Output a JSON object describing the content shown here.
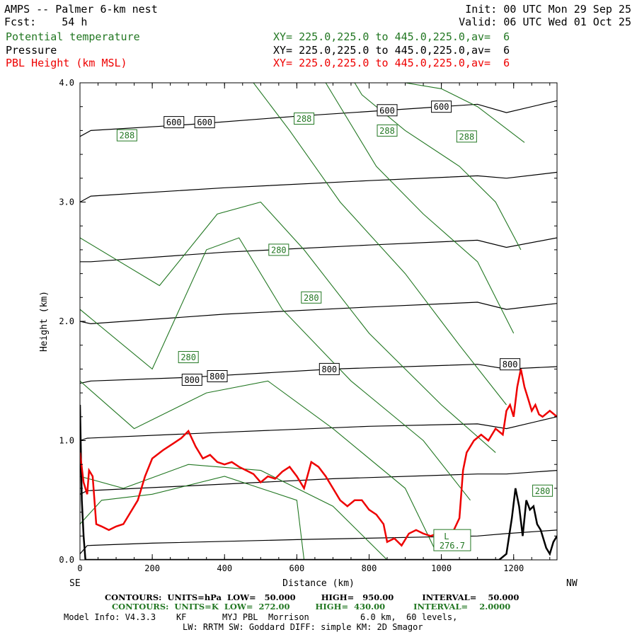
{
  "header": {
    "title": "AMPS -- Palmer 6-km nest",
    "fcst": "Fcst:    54 h",
    "init": "Init: 00 UTC Mon 29 Sep 25",
    "valid": "Valid: 06 UTC Wed 01 Oct 25",
    "fields": [
      {
        "name": "Potential temperature",
        "xy": "XY= 225.0,225.0 to 445.0,225.0,av=  6",
        "color": "#227722"
      },
      {
        "name": "Pressure",
        "xy": "XY= 225.0,225.0 to 445.0,225.0,av=  6",
        "color": "#000000"
      },
      {
        "name": "PBL Height (km MSL)",
        "xy": "XY= 225.0,225.0 to 445.0,225.0,av=  6",
        "color": "#ee0000"
      }
    ]
  },
  "chart_data": {
    "type": "line",
    "title": "AMPS -- Palmer 6-km nest",
    "xlabel": "Distance (km)",
    "ylabel": "Height (km)",
    "xlim": [
      0,
      1320
    ],
    "ylim": [
      0,
      4.0
    ],
    "x_ticks": [
      "0",
      "200",
      "400",
      "600",
      "800",
      "1000",
      "1200"
    ],
    "y_ticks": [
      "0.0",
      "1.0",
      "2.0",
      "3.0",
      "4.0"
    ],
    "x_end_left": "SE",
    "x_end_right": "NW",
    "grid": false,
    "pressure_contours": [
      {
        "hPa": 950,
        "points": [
          [
            0,
            0.05
          ],
          [
            20,
            0.12
          ],
          [
            200,
            0.14
          ],
          [
            600,
            0.17
          ],
          [
            1100,
            0.2
          ],
          [
            1180,
            0.22
          ],
          [
            1320,
            0.25
          ]
        ]
      },
      {
        "hPa": 900,
        "points": [
          [
            0,
            0.55
          ],
          [
            20,
            0.58
          ],
          [
            300,
            0.62
          ],
          [
            700,
            0.68
          ],
          [
            1100,
            0.72
          ],
          [
            1180,
            0.72
          ],
          [
            1320,
            0.75
          ]
        ]
      },
      {
        "hPa": 850,
        "points": [
          [
            0,
            1.0
          ],
          [
            20,
            1.02
          ],
          [
            400,
            1.07
          ],
          [
            800,
            1.12
          ],
          [
            1100,
            1.14
          ],
          [
            1180,
            1.1
          ],
          [
            1320,
            1.2
          ]
        ]
      },
      {
        "hPa": 800,
        "points": [
          [
            0,
            1.48
          ],
          [
            30,
            1.5
          ],
          [
            300,
            1.53
          ],
          [
            700,
            1.6
          ],
          [
            1100,
            1.64
          ],
          [
            1180,
            1.6
          ],
          [
            1320,
            1.62
          ]
        ]
      },
      {
        "hPa": 750,
        "points": [
          [
            0,
            2.0
          ],
          [
            30,
            1.98
          ],
          [
            400,
            2.06
          ],
          [
            800,
            2.12
          ],
          [
            1100,
            2.16
          ],
          [
            1180,
            2.1
          ],
          [
            1320,
            2.15
          ]
        ]
      },
      {
        "hPa": 700,
        "points": [
          [
            0,
            2.5
          ],
          [
            30,
            2.5
          ],
          [
            400,
            2.58
          ],
          [
            800,
            2.64
          ],
          [
            1100,
            2.68
          ],
          [
            1180,
            2.62
          ],
          [
            1320,
            2.7
          ]
        ]
      },
      {
        "hPa": 650,
        "points": [
          [
            0,
            3.0
          ],
          [
            30,
            3.05
          ],
          [
            400,
            3.12
          ],
          [
            800,
            3.18
          ],
          [
            1100,
            3.22
          ],
          [
            1180,
            3.2
          ],
          [
            1320,
            3.25
          ]
        ]
      },
      {
        "hPa": 600,
        "points": [
          [
            0,
            3.55
          ],
          [
            30,
            3.6
          ],
          [
            300,
            3.65
          ],
          [
            600,
            3.72
          ],
          [
            900,
            3.78
          ],
          [
            1100,
            3.82
          ],
          [
            1180,
            3.75
          ],
          [
            1320,
            3.85
          ]
        ]
      }
    ],
    "theta_contours": [
      {
        "K": 272,
        "points": [
          [
            620,
            0.0
          ],
          [
            600,
            0.5
          ],
          [
            400,
            0.7
          ],
          [
            200,
            0.55
          ],
          [
            60,
            0.5
          ],
          [
            0,
            0.3
          ]
        ]
      },
      {
        "K": 274,
        "points": [
          [
            850,
            0.0
          ],
          [
            700,
            0.45
          ],
          [
            500,
            0.75
          ],
          [
            300,
            0.8
          ],
          [
            120,
            0.6
          ],
          [
            0,
            0.7
          ]
        ]
      },
      {
        "K": 276,
        "points": [
          [
            980,
            0.1
          ],
          [
            900,
            0.6
          ],
          [
            700,
            1.1
          ],
          [
            520,
            1.5
          ],
          [
            350,
            1.4
          ],
          [
            150,
            1.1
          ],
          [
            0,
            1.5
          ]
        ]
      },
      {
        "K": 278,
        "points": [
          [
            1080,
            0.5
          ],
          [
            950,
            1.0
          ],
          [
            750,
            1.5
          ],
          [
            560,
            2.1
          ],
          [
            440,
            2.7
          ],
          [
            350,
            2.6
          ],
          [
            200,
            1.6
          ],
          [
            0,
            2.1
          ]
        ]
      },
      {
        "K": 280,
        "points": [
          [
            1150,
            0.9
          ],
          [
            1000,
            1.3
          ],
          [
            800,
            1.9
          ],
          [
            620,
            2.6
          ],
          [
            500,
            3.0
          ],
          [
            380,
            2.9
          ],
          [
            220,
            2.3
          ],
          [
            0,
            2.7
          ]
        ]
      },
      {
        "K": 282,
        "points": [
          [
            1180,
            1.3
          ],
          [
            1050,
            1.8
          ],
          [
            900,
            2.4
          ],
          [
            720,
            3.0
          ],
          [
            580,
            3.6
          ],
          [
            480,
            4.0
          ]
        ]
      },
      {
        "K": 284,
        "points": [
          [
            1200,
            1.9
          ],
          [
            1100,
            2.5
          ],
          [
            950,
            2.9
          ],
          [
            820,
            3.3
          ],
          [
            700,
            3.9
          ],
          [
            680,
            4.0
          ]
        ]
      },
      {
        "K": 286,
        "points": [
          [
            1220,
            2.6
          ],
          [
            1150,
            3.0
          ],
          [
            1050,
            3.3
          ],
          [
            900,
            3.6
          ],
          [
            780,
            3.9
          ],
          [
            760,
            4.0
          ]
        ]
      },
      {
        "K": 288,
        "points": [
          [
            1230,
            3.5
          ],
          [
            1100,
            3.8
          ],
          [
            1000,
            3.95
          ],
          [
            900,
            4.0
          ]
        ]
      }
    ],
    "pbl_height": [
      [
        0,
        0.9
      ],
      [
        10,
        0.65
      ],
      [
        20,
        0.55
      ],
      [
        25,
        0.75
      ],
      [
        35,
        0.7
      ],
      [
        45,
        0.3
      ],
      [
        60,
        0.28
      ],
      [
        80,
        0.25
      ],
      [
        100,
        0.28
      ],
      [
        120,
        0.3
      ],
      [
        140,
        0.4
      ],
      [
        160,
        0.5
      ],
      [
        180,
        0.7
      ],
      [
        200,
        0.85
      ],
      [
        230,
        0.92
      ],
      [
        260,
        0.98
      ],
      [
        280,
        1.02
      ],
      [
        300,
        1.08
      ],
      [
        320,
        0.95
      ],
      [
        340,
        0.85
      ],
      [
        360,
        0.88
      ],
      [
        380,
        0.82
      ],
      [
        400,
        0.8
      ],
      [
        420,
        0.82
      ],
      [
        440,
        0.78
      ],
      [
        460,
        0.75
      ],
      [
        480,
        0.72
      ],
      [
        500,
        0.65
      ],
      [
        520,
        0.7
      ],
      [
        540,
        0.68
      ],
      [
        560,
        0.74
      ],
      [
        580,
        0.78
      ],
      [
        600,
        0.7
      ],
      [
        620,
        0.6
      ],
      [
        640,
        0.82
      ],
      [
        660,
        0.78
      ],
      [
        680,
        0.7
      ],
      [
        700,
        0.6
      ],
      [
        720,
        0.5
      ],
      [
        740,
        0.45
      ],
      [
        760,
        0.5
      ],
      [
        780,
        0.5
      ],
      [
        800,
        0.42
      ],
      [
        820,
        0.38
      ],
      [
        840,
        0.3
      ],
      [
        850,
        0.15
      ],
      [
        870,
        0.18
      ],
      [
        890,
        0.12
      ],
      [
        910,
        0.22
      ],
      [
        930,
        0.25
      ],
      [
        950,
        0.22
      ],
      [
        970,
        0.2
      ],
      [
        990,
        0.22
      ],
      [
        1010,
        0.2
      ],
      [
        1030,
        0.22
      ],
      [
        1050,
        0.35
      ],
      [
        1060,
        0.75
      ],
      [
        1070,
        0.9
      ],
      [
        1090,
        1.0
      ],
      [
        1110,
        1.05
      ],
      [
        1130,
        1.0
      ],
      [
        1150,
        1.1
      ],
      [
        1170,
        1.05
      ],
      [
        1180,
        1.25
      ],
      [
        1190,
        1.3
      ],
      [
        1200,
        1.2
      ],
      [
        1210,
        1.45
      ],
      [
        1220,
        1.6
      ],
      [
        1230,
        1.45
      ],
      [
        1240,
        1.35
      ],
      [
        1250,
        1.25
      ],
      [
        1260,
        1.3
      ],
      [
        1270,
        1.22
      ],
      [
        1280,
        1.2
      ],
      [
        1300,
        1.25
      ],
      [
        1320,
        1.2
      ]
    ],
    "terrain": [
      [
        0,
        1.3
      ],
      [
        5,
        0.5
      ],
      [
        10,
        0.2
      ],
      [
        15,
        0.0
      ],
      [
        1160,
        0.0
      ],
      [
        1180,
        0.05
      ],
      [
        1195,
        0.35
      ],
      [
        1205,
        0.6
      ],
      [
        1215,
        0.45
      ],
      [
        1225,
        0.2
      ],
      [
        1235,
        0.5
      ],
      [
        1245,
        0.42
      ],
      [
        1255,
        0.45
      ],
      [
        1265,
        0.3
      ],
      [
        1275,
        0.25
      ],
      [
        1290,
        0.1
      ],
      [
        1300,
        0.05
      ],
      [
        1310,
        0.15
      ],
      [
        1320,
        0.2
      ]
    ],
    "contour_labels": [
      {
        "text": "600",
        "x": 260,
        "y": 3.67,
        "series": "pressure"
      },
      {
        "text": "600",
        "x": 345,
        "y": 3.67,
        "series": "pressure"
      },
      {
        "text": "600",
        "x": 850,
        "y": 3.77,
        "series": "pressure"
      },
      {
        "text": "600",
        "x": 1000,
        "y": 3.8,
        "series": "pressure"
      },
      {
        "text": "800",
        "x": 310,
        "y": 1.51,
        "series": "pressure"
      },
      {
        "text": "800",
        "x": 380,
        "y": 1.54,
        "series": "pressure"
      },
      {
        "text": "800",
        "x": 690,
        "y": 1.6,
        "series": "pressure"
      },
      {
        "text": "800",
        "x": 1190,
        "y": 1.64,
        "series": "pressure"
      },
      {
        "text": "288",
        "x": 130,
        "y": 3.56,
        "series": "theta"
      },
      {
        "text": "288",
        "x": 620,
        "y": 3.7,
        "series": "theta"
      },
      {
        "text": "288",
        "x": 850,
        "y": 3.6,
        "series": "theta"
      },
      {
        "text": "288",
        "x": 1070,
        "y": 3.55,
        "series": "theta"
      },
      {
        "text": "280",
        "x": 550,
        "y": 2.6,
        "series": "theta"
      },
      {
        "text": "280",
        "x": 640,
        "y": 2.2,
        "series": "theta"
      },
      {
        "text": "280",
        "x": 300,
        "y": 1.7,
        "series": "theta"
      },
      {
        "text": "280",
        "x": 1280,
        "y": 0.58,
        "series": "theta"
      }
    ],
    "low_marker": {
      "letter": "L",
      "value": "276.7",
      "x": 1030,
      "y": 0.1
    }
  },
  "footer": {
    "contours_black": "CONTOURS:  UNITS=hPa  LOW=   50.000         HIGH=   950.00          INTERVAL=    50.000",
    "contours_green": "CONTOURS:  UNITS=K  LOW=  272.00         HIGH=  430.00          INTERVAL=    2.0000",
    "model_info": "Model Info: V4.3.3    KF       MYJ PBL  Morrison          6.0 km,  60 levels,",
    "model_info2": "LW: RRTM SW: Goddard DIFF: simple KM: 2D Smagor"
  },
  "colors": {
    "pressure": "#000000",
    "theta": "#227722",
    "pbl": "#ee0000",
    "terrain": "#000000"
  }
}
